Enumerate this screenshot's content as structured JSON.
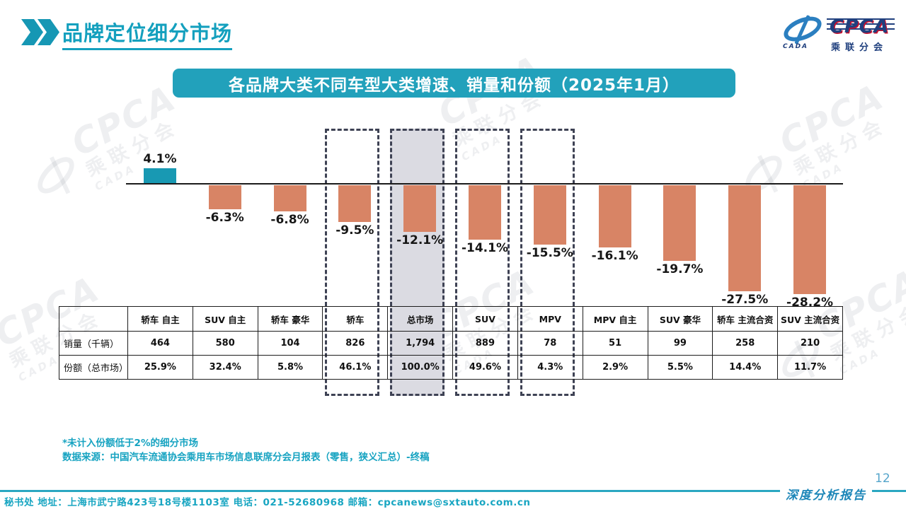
{
  "header": {
    "title": "品牌定位细分市场"
  },
  "logo": {
    "cpca": "CPCA",
    "sub": "乘联分会",
    "cada": "CADA"
  },
  "banner": {
    "title": "各品牌大类不同车型大类增速、销量和份额（2025年1月）"
  },
  "chart_data": {
    "type": "bar",
    "title": "各品牌大类不同车型大类增速、销量和份额（2025年1月）",
    "categories": [
      "轿车 自主",
      "SUV 自主",
      "轿车 豪华",
      "轿车",
      "总市场",
      "SUV",
      "MPV",
      "MPV 自主",
      "SUV 豪华",
      "轿车 主流合资",
      "SUV 主流合资"
    ],
    "growth_pct": [
      4.1,
      -6.3,
      -6.8,
      -9.5,
      -12.1,
      -14.1,
      -15.5,
      -16.1,
      -19.7,
      -27.5,
      -28.2
    ],
    "growth_labels": [
      "4.1%",
      "-6.3%",
      "-6.8%",
      "-9.5%",
      "-12.1%",
      "-14.1%",
      "-15.5%",
      "-16.1%",
      "-19.7%",
      "-27.5%",
      "-28.2%"
    ],
    "sales_thousand": [
      464,
      580,
      104,
      826,
      1794,
      889,
      78,
      51,
      99,
      258,
      210
    ],
    "share_of_total": [
      "25.9%",
      "32.4%",
      "5.8%",
      "46.1%",
      "100.0%",
      "49.6%",
      "4.3%",
      "2.9%",
      "5.5%",
      "14.4%",
      "11.7%"
    ],
    "highlighted_categories": [
      "轿车",
      "总市场",
      "SUV",
      "MPV"
    ],
    "emphasized_category": "总市场",
    "colors": {
      "positive_bar": "#1899B3",
      "negative_bar": "#D88465",
      "highlight_fill": "#DBDBE2",
      "dashed_border": "#3E4254"
    },
    "ylim": [
      -30,
      6
    ],
    "grid": false,
    "legend": false
  },
  "table": {
    "corner": "",
    "columns": [
      "轿车 自主",
      "SUV 自主",
      "轿车 豪华",
      "轿车",
      "总市场",
      "SUV",
      "MPV",
      "MPV 自主",
      "SUV 豪华",
      "轿车 主流合资",
      "SUV 主流合资"
    ],
    "rows": [
      {
        "label": "销量（千辆）",
        "values": [
          "464",
          "580",
          "104",
          "826",
          "1,794",
          "889",
          "78",
          "51",
          "99",
          "258",
          "210"
        ]
      },
      {
        "label": "份额（总市场）",
        "values": [
          "25.9%",
          "32.4%",
          "5.8%",
          "46.1%",
          "100.0%",
          "49.6%",
          "4.3%",
          "2.9%",
          "5.5%",
          "14.4%",
          "11.7%"
        ]
      }
    ]
  },
  "footnotes": {
    "line1": "*未计入份额低于2%的细分市场",
    "line2": "数据来源：中国汽车流通协会乘用车市场信息联席分会月报表（零售，狭义汇总）-终稿"
  },
  "footer": {
    "contact": "秘书处  地址：上海市武宁路423号18号楼1103室 电话：021-52680968   邮箱：cpcanews@sxtauto.com.cn",
    "report_title": "深度分析报告",
    "page_number": "12"
  },
  "watermark": {
    "cpca": "CPCA",
    "sub": "乘联分会",
    "cada": "CADA"
  }
}
